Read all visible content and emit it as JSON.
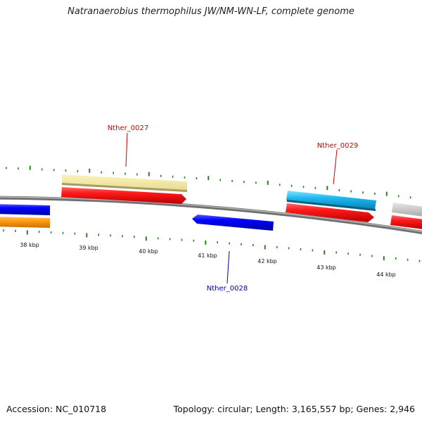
{
  "title": "Natranaerobius thermophilus JW/NM-WN-LF, complete genome",
  "footer": {
    "accession": "Accession: NC_010718",
    "topology": "Topology: circular; Length: 3,165,557 bp; Genes: 2,946"
  },
  "colors": {
    "backbone": "#888888",
    "tick": "#2e7d22",
    "forward_label": "#cc0000",
    "reverse_label": "#0000aa"
  },
  "scale_labels": [
    "38 kbp",
    "39 kbp",
    "40 kbp",
    "41 kbp",
    "42 kbp",
    "43 kbp",
    "44 kbp"
  ],
  "callouts": [
    {
      "label": "Nther_0027",
      "strand": "forward"
    },
    {
      "label": "Nther_0029",
      "strand": "forward"
    },
    {
      "label": "Nther_0028",
      "strand": "reverse"
    }
  ]
}
